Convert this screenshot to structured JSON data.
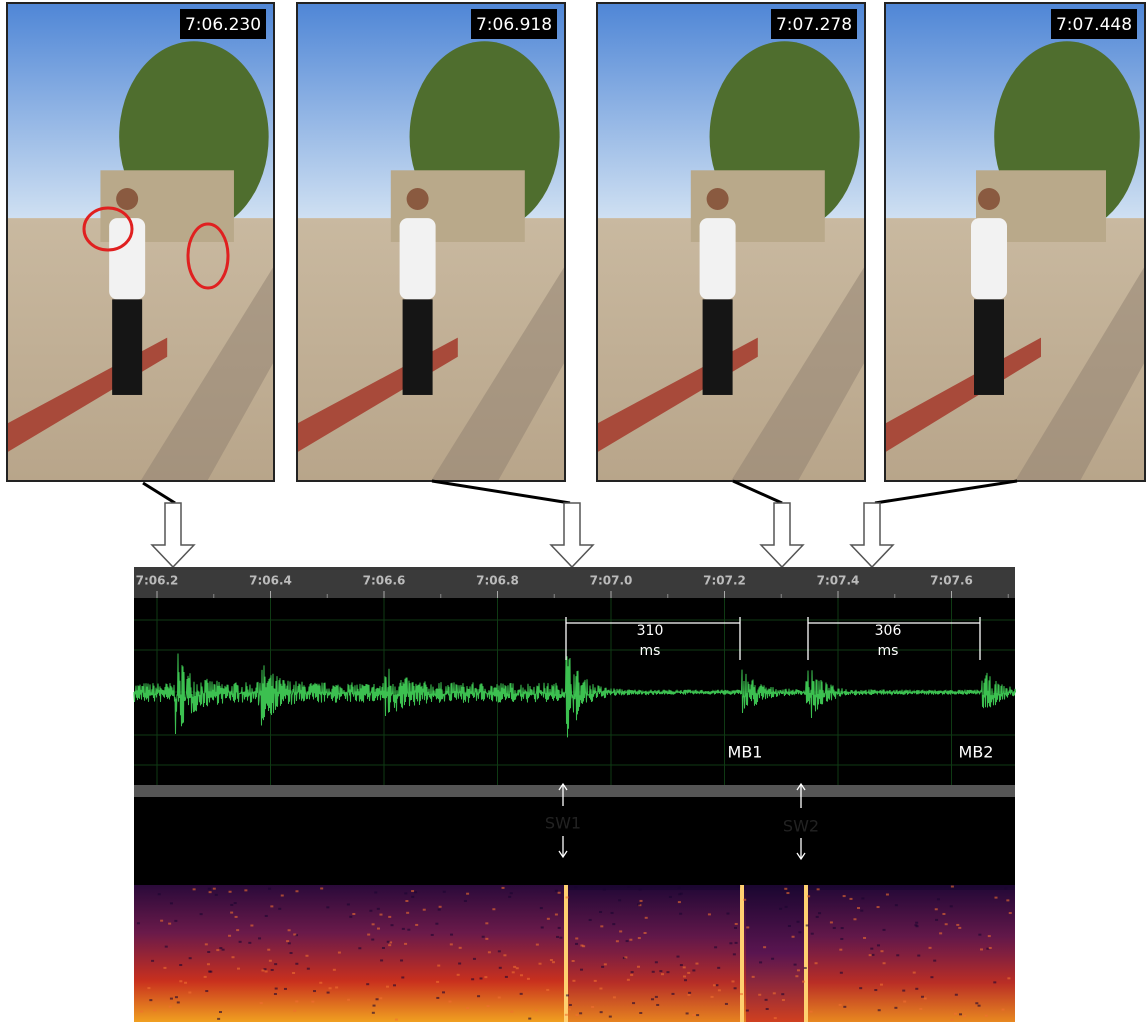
{
  "frames": [
    {
      "timestamp": "7:06.230"
    },
    {
      "timestamp": "7:06.918"
    },
    {
      "timestamp": "7:07.278"
    },
    {
      "timestamp": "7:07.448"
    }
  ],
  "timeline": {
    "ticks": [
      "7:06.2",
      "7:06.4",
      "7:06.6",
      "7:06.8",
      "7:07.0",
      "7:07.2",
      "7:07.4",
      "7:07.6"
    ]
  },
  "intervals": [
    {
      "value": "310",
      "unit": "ms"
    },
    {
      "value": "306",
      "unit": "ms"
    }
  ],
  "markers": {
    "mb1": "MB1",
    "mb2": "MB2",
    "sw1": "SW1",
    "sw2": "SW2"
  }
}
